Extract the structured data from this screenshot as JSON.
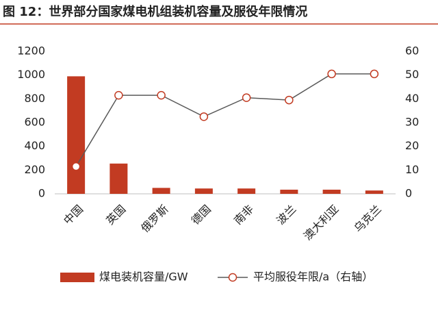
{
  "chart_data": {
    "type": "bar",
    "title": "图 12：世界部分国家煤电机组装机容量及服役年限情况",
    "categories": [
      "中国",
      "英国",
      "俄罗斯",
      "德国",
      "南非",
      "波兰",
      "澳大利亚",
      "乌克兰"
    ],
    "series": [
      {
        "name": "煤电装机容量/GW",
        "type": "bar",
        "color": "#c23b22",
        "values": [
          990,
          255,
          50,
          45,
          45,
          35,
          35,
          28
        ]
      },
      {
        "name": "平均服役年限/a（右轴）",
        "type": "line",
        "axis": "y2",
        "color": "#595959",
        "values": [
          11.5,
          41.5,
          41.5,
          32.5,
          40.5,
          39.5,
          50.5,
          50.5
        ]
      }
    ],
    "ylim": [
      0,
      1200
    ],
    "yticks": [
      0,
      200,
      400,
      600,
      800,
      1000,
      1200
    ],
    "y2lim": [
      0,
      60
    ],
    "y2ticks": [
      0,
      10,
      20,
      30,
      40,
      50,
      60
    ],
    "grid": false
  }
}
